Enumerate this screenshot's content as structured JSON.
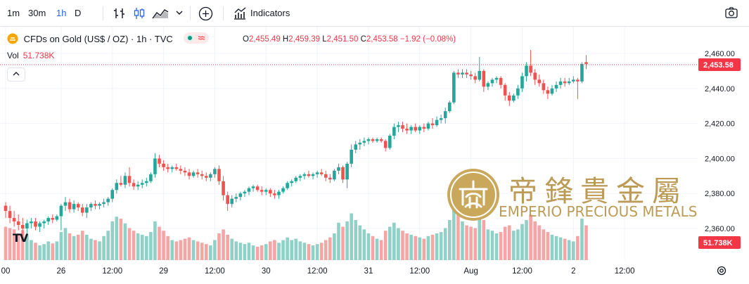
{
  "toolbar": {
    "intervals": [
      "1m",
      "30m",
      "1h",
      "D"
    ],
    "active_interval": "1h",
    "indicators_label": "Indicators"
  },
  "legend": {
    "symbol": "CFDs on Gold (US$ / OZ) · 1h · TVC",
    "o_key": "O",
    "o": "2,455.49",
    "h_key": "H",
    "h": "2,459.39",
    "l_key": "L",
    "l": "2,451.50",
    "c_key": "C",
    "c": "2,453.58",
    "change": "−1.92 (−0.08%)"
  },
  "volume": {
    "label": "Vol",
    "value": "51.738K"
  },
  "watermark": {
    "logo_mark": "帝",
    "chinese": "帝鋒貴金屬",
    "english": "EMPERIO PRECIOUS METALS"
  },
  "tv_logo": "TV",
  "colors": {
    "up": "#26a69a",
    "down": "#ef5350",
    "vol_up": "#8fd0c7",
    "vol_down": "#f4a5a4",
    "last_price": "#f23645",
    "gold": "#b8964d"
  },
  "chart_data": {
    "type": "candlestick",
    "symbol": "CFDs on Gold (US$ / OZ)",
    "interval": "1h",
    "y_ticks": [
      2360,
      2380,
      2400,
      2420,
      2440,
      2460
    ],
    "y_tick_labels": [
      "2,360.00",
      "2,380.00",
      "2,400.00",
      "2,420.00",
      "2,440.00",
      "2,460.00"
    ],
    "ylim": [
      2351,
      2466
    ],
    "last_price": 2453.58,
    "last_price_label": "2,453.58",
    "last_volume_label": "51.738K",
    "x_tick_labels": [
      {
        "label": "00",
        "index": 0
      },
      {
        "label": "26",
        "index": 13
      },
      {
        "label": "12:00",
        "index": 25
      },
      {
        "label": "29",
        "index": 37
      },
      {
        "label": "12:00",
        "index": 49
      },
      {
        "label": "30",
        "index": 61
      },
      {
        "label": "12:00",
        "index": 73
      },
      {
        "label": "31",
        "index": 85
      },
      {
        "label": "12:00",
        "index": 97
      },
      {
        "label": "Aug",
        "index": 109
      },
      {
        "label": "12:00",
        "index": 121
      },
      {
        "label": "2",
        "index": 133
      },
      {
        "label": "12:00",
        "index": 145
      }
    ],
    "candles": [
      [
        2373,
        2375,
        2366,
        2370,
        50
      ],
      [
        2370,
        2373,
        2363,
        2366,
        48
      ],
      [
        2366,
        2370,
        2361,
        2364,
        46
      ],
      [
        2364,
        2368,
        2359,
        2362,
        40
      ],
      [
        2362,
        2366,
        2356,
        2360,
        45
      ],
      [
        2360,
        2365,
        2357,
        2363,
        38
      ],
      [
        2363,
        2366,
        2360,
        2364,
        30
      ],
      [
        2364,
        2366,
        2359,
        2361,
        26
      ],
      [
        2361,
        2364,
        2358,
        2363,
        22
      ],
      [
        2363,
        2365,
        2360,
        2364,
        24
      ],
      [
        2364,
        2367,
        2362,
        2366,
        28
      ],
      [
        2366,
        2368,
        2363,
        2365,
        25
      ],
      [
        2365,
        2368,
        2364,
        2367,
        28
      ],
      [
        2367,
        2374,
        2359,
        2373,
        42
      ],
      [
        2373,
        2378,
        2370,
        2375,
        48
      ],
      [
        2375,
        2377,
        2369,
        2371,
        40
      ],
      [
        2371,
        2376,
        2369,
        2374,
        36
      ],
      [
        2374,
        2375,
        2370,
        2372,
        38
      ],
      [
        2372,
        2374,
        2367,
        2369,
        44
      ],
      [
        2369,
        2374,
        2366,
        2372,
        38
      ],
      [
        2372,
        2375,
        2370,
        2374,
        32
      ],
      [
        2374,
        2376,
        2371,
        2373,
        30
      ],
      [
        2373,
        2375,
        2371,
        2374,
        28
      ],
      [
        2374,
        2377,
        2372,
        2375,
        36
      ],
      [
        2375,
        2378,
        2373,
        2377,
        44
      ],
      [
        2377,
        2383,
        2375,
        2382,
        58
      ],
      [
        2382,
        2388,
        2380,
        2386,
        65
      ],
      [
        2386,
        2390,
        2384,
        2385,
        62
      ],
      [
        2385,
        2392,
        2383,
        2390,
        55
      ],
      [
        2390,
        2395,
        2384,
        2386,
        48
      ],
      [
        2386,
        2388,
        2382,
        2384,
        44
      ],
      [
        2384,
        2387,
        2382,
        2385,
        40
      ],
      [
        2385,
        2388,
        2383,
        2386,
        38
      ],
      [
        2386,
        2389,
        2384,
        2387,
        36
      ],
      [
        2387,
        2392,
        2386,
        2391,
        42
      ],
      [
        2391,
        2403,
        2389,
        2400,
        58
      ],
      [
        2400,
        2402,
        2395,
        2397,
        50
      ],
      [
        2397,
        2399,
        2393,
        2395,
        44
      ],
      [
        2395,
        2397,
        2392,
        2394,
        36
      ],
      [
        2394,
        2396,
        2392,
        2395,
        30
      ],
      [
        2395,
        2397,
        2393,
        2394,
        28
      ],
      [
        2394,
        2396,
        2391,
        2393,
        30
      ],
      [
        2393,
        2395,
        2390,
        2392,
        32
      ],
      [
        2392,
        2394,
        2388,
        2390,
        34
      ],
      [
        2390,
        2393,
        2389,
        2392,
        30
      ],
      [
        2392,
        2394,
        2389,
        2391,
        28
      ],
      [
        2391,
        2393,
        2388,
        2390,
        26
      ],
      [
        2390,
        2392,
        2387,
        2389,
        24
      ],
      [
        2389,
        2392,
        2387,
        2391,
        22
      ],
      [
        2391,
        2395,
        2389,
        2394,
        30
      ],
      [
        2394,
        2396,
        2385,
        2387,
        40
      ],
      [
        2387,
        2390,
        2376,
        2379,
        46
      ],
      [
        2379,
        2381,
        2370,
        2374,
        38
      ],
      [
        2374,
        2379,
        2372,
        2377,
        32
      ],
      [
        2377,
        2380,
        2375,
        2378,
        28
      ],
      [
        2378,
        2381,
        2376,
        2380,
        26
      ],
      [
        2380,
        2382,
        2378,
        2381,
        24
      ],
      [
        2381,
        2384,
        2379,
        2383,
        26
      ],
      [
        2383,
        2385,
        2381,
        2384,
        22
      ],
      [
        2384,
        2385,
        2381,
        2382,
        20
      ],
      [
        2382,
        2384,
        2379,
        2381,
        22
      ],
      [
        2381,
        2383,
        2379,
        2382,
        24
      ],
      [
        2382,
        2383,
        2378,
        2380,
        28
      ],
      [
        2380,
        2382,
        2377,
        2379,
        30
      ],
      [
        2379,
        2382,
        2377,
        2381,
        26
      ],
      [
        2381,
        2384,
        2380,
        2383,
        30
      ],
      [
        2383,
        2387,
        2382,
        2386,
        34
      ],
      [
        2386,
        2388,
        2384,
        2387,
        30
      ],
      [
        2387,
        2390,
        2386,
        2389,
        32
      ],
      [
        2389,
        2391,
        2387,
        2390,
        28
      ],
      [
        2390,
        2392,
        2388,
        2391,
        26
      ],
      [
        2391,
        2393,
        2389,
        2390,
        24
      ],
      [
        2390,
        2392,
        2388,
        2391,
        22
      ],
      [
        2391,
        2393,
        2389,
        2392,
        24
      ],
      [
        2392,
        2394,
        2390,
        2391,
        26
      ],
      [
        2391,
        2393,
        2387,
        2389,
        30
      ],
      [
        2389,
        2391,
        2386,
        2388,
        34
      ],
      [
        2388,
        2394,
        2387,
        2393,
        40
      ],
      [
        2393,
        2397,
        2391,
        2395,
        56
      ],
      [
        2395,
        2396,
        2386,
        2388,
        50
      ],
      [
        2388,
        2398,
        2383,
        2397,
        58
      ],
      [
        2397,
        2408,
        2395,
        2405,
        70
      ],
      [
        2405,
        2410,
        2403,
        2408,
        60
      ],
      [
        2408,
        2411,
        2405,
        2409,
        52
      ],
      [
        2409,
        2412,
        2407,
        2410,
        46
      ],
      [
        2410,
        2412,
        2408,
        2411,
        40
      ],
      [
        2411,
        2412,
        2409,
        2410,
        36
      ],
      [
        2410,
        2412,
        2409,
        2411,
        32
      ],
      [
        2411,
        2412,
        2409,
        2410,
        30
      ],
      [
        2410,
        2411,
        2404,
        2406,
        44
      ],
      [
        2406,
        2414,
        2405,
        2413,
        50
      ],
      [
        2413,
        2420,
        2411,
        2418,
        56
      ],
      [
        2418,
        2421,
        2415,
        2419,
        48
      ],
      [
        2419,
        2421,
        2415,
        2417,
        44
      ],
      [
        2417,
        2420,
        2414,
        2416,
        40
      ],
      [
        2416,
        2419,
        2414,
        2418,
        38
      ],
      [
        2418,
        2420,
        2415,
        2416,
        36
      ],
      [
        2416,
        2419,
        2414,
        2418,
        34
      ],
      [
        2418,
        2420,
        2415,
        2417,
        32
      ],
      [
        2417,
        2421,
        2416,
        2420,
        36
      ],
      [
        2420,
        2423,
        2417,
        2419,
        38
      ],
      [
        2419,
        2424,
        2418,
        2422,
        40
      ],
      [
        2422,
        2425,
        2420,
        2423,
        42
      ],
      [
        2423,
        2429,
        2420,
        2427,
        48
      ],
      [
        2427,
        2433,
        2426,
        2432,
        60
      ],
      [
        2432,
        2450,
        2431,
        2449,
        80
      ],
      [
        2449,
        2451,
        2446,
        2448,
        70
      ],
      [
        2448,
        2451,
        2446,
        2449,
        58
      ],
      [
        2449,
        2451,
        2446,
        2448,
        52
      ],
      [
        2448,
        2450,
        2445,
        2447,
        50
      ],
      [
        2447,
        2449,
        2443,
        2445,
        48
      ],
      [
        2445,
        2458,
        2444,
        2450,
        64
      ],
      [
        2450,
        2451,
        2438,
        2441,
        60
      ],
      [
        2441,
        2444,
        2439,
        2443,
        46
      ],
      [
        2443,
        2446,
        2441,
        2445,
        44
      ],
      [
        2445,
        2447,
        2443,
        2446,
        40
      ],
      [
        2446,
        2447,
        2440,
        2442,
        42
      ],
      [
        2442,
        2443,
        2433,
        2436,
        50
      ],
      [
        2436,
        2438,
        2430,
        2433,
        52
      ],
      [
        2433,
        2437,
        2432,
        2436,
        44
      ],
      [
        2436,
        2442,
        2434,
        2440,
        46
      ],
      [
        2440,
        2449,
        2438,
        2447,
        54
      ],
      [
        2447,
        2455,
        2444,
        2453,
        60
      ],
      [
        2453,
        2462,
        2447,
        2449,
        68
      ],
      [
        2449,
        2451,
        2442,
        2445,
        58
      ],
      [
        2445,
        2448,
        2441,
        2443,
        52
      ],
      [
        2443,
        2445,
        2437,
        2439,
        46
      ],
      [
        2439,
        2441,
        2434,
        2437,
        42
      ],
      [
        2437,
        2442,
        2436,
        2440,
        38
      ],
      [
        2440,
        2444,
        2438,
        2442,
        36
      ],
      [
        2442,
        2446,
        2440,
        2444,
        34
      ],
      [
        2444,
        2446,
        2441,
        2443,
        32
      ],
      [
        2443,
        2446,
        2442,
        2444,
        30
      ],
      [
        2444,
        2447,
        2443,
        2445,
        28
      ],
      [
        2445,
        2446,
        2434,
        2444,
        36
      ],
      [
        2444,
        2455,
        2443,
        2454,
        62
      ],
      [
        2455,
        2459,
        2451,
        2454,
        52
      ]
    ]
  }
}
